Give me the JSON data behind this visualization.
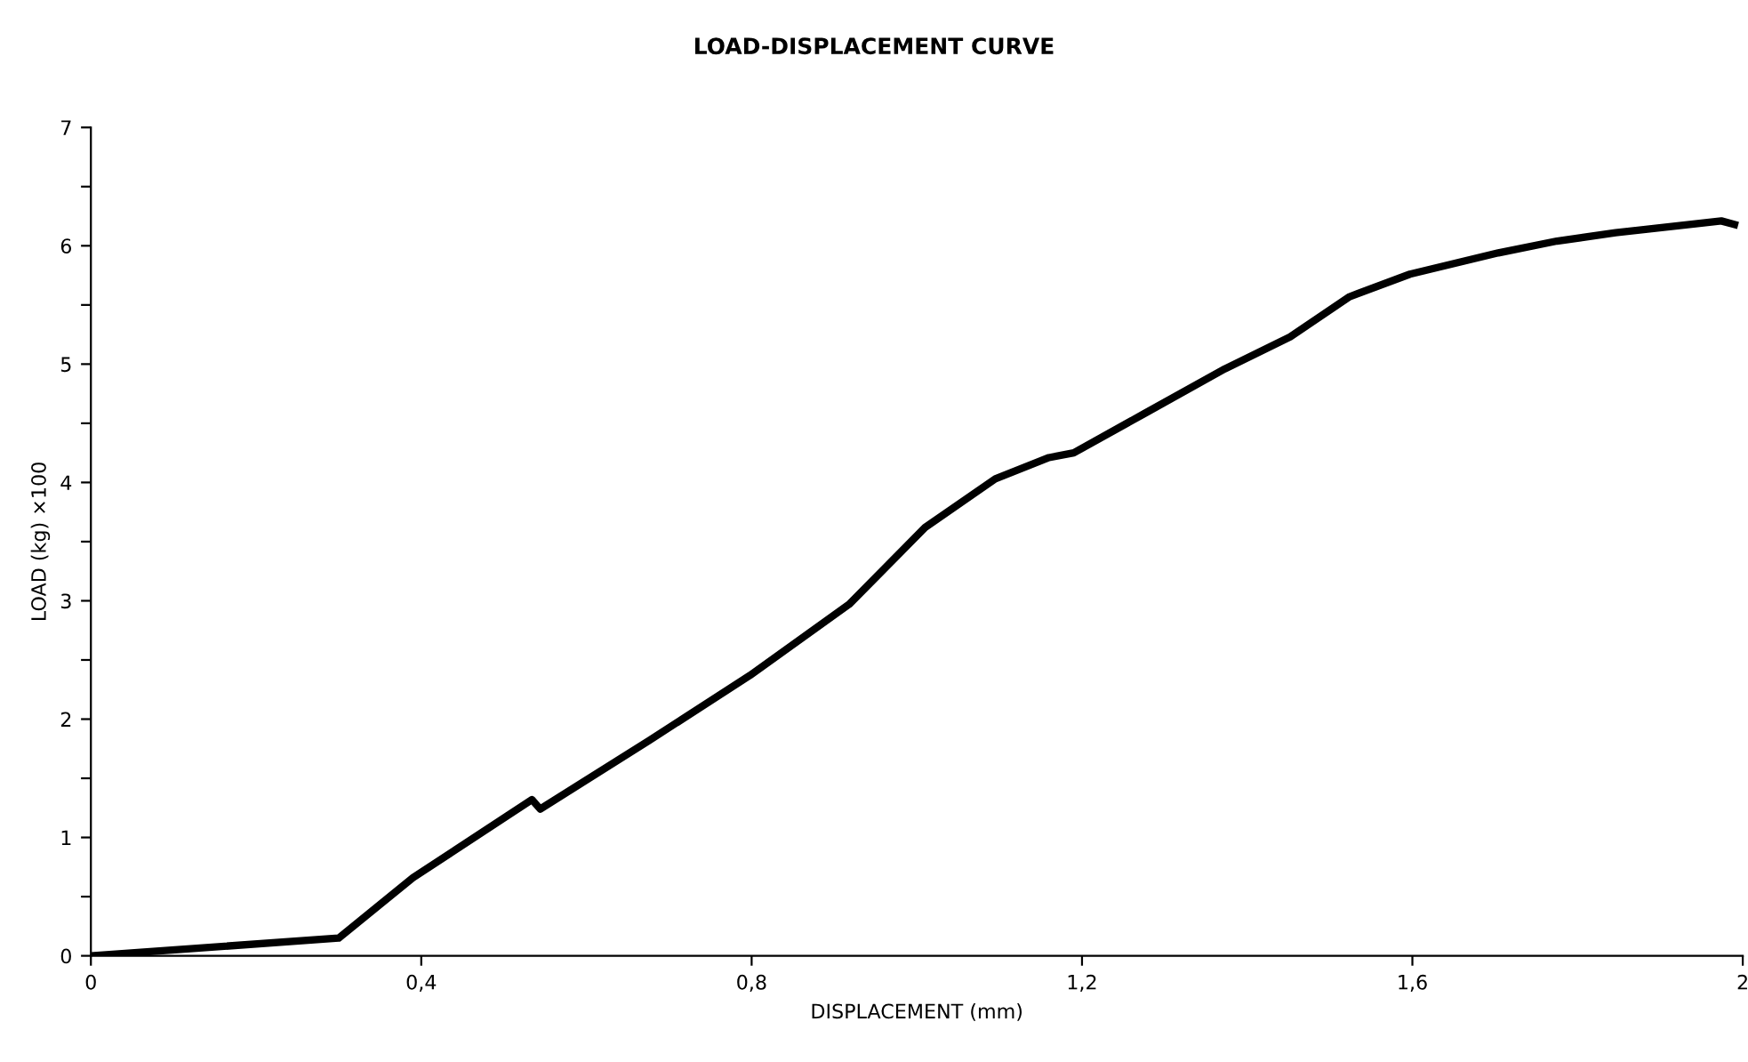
{
  "chart_data": {
    "type": "line",
    "title": "LOAD-DISPLACEMENT CURVE",
    "xlabel": "DISPLACEMENT (mm)",
    "ylabel": "LOAD (kg) ×100",
    "series": [
      {
        "color": "#000000",
        "x": [
          0,
          0.3,
          0.39,
          0.534,
          0.544,
          0.676,
          0.798,
          0.918,
          1.01,
          1.095,
          1.16,
          1.19,
          1.275,
          1.373,
          1.452,
          1.524,
          1.597,
          1.704,
          1.775,
          1.846,
          1.974,
          1.99
        ],
        "values": [
          0,
          0.15,
          0.66,
          1.32,
          1.24,
          1.82,
          2.37,
          2.97,
          3.62,
          4.03,
          4.21,
          4.25,
          4.58,
          4.96,
          5.23,
          5.57,
          5.76,
          5.94,
          6.04,
          6.11,
          6.21,
          6.18
        ]
      }
    ],
    "xlim": [
      0,
      2
    ],
    "ylim": [
      0,
      7
    ],
    "xticks": [
      0,
      {
        "value": 0.4,
        "label": "0,4"
      },
      {
        "value": 0.8,
        "label": "0,8"
      },
      {
        "value": 1.2,
        "label": "1,2"
      },
      {
        "value": 1.6,
        "label": "1,6"
      },
      2
    ],
    "yticks": [
      0,
      {
        "value": 0.5,
        "label": null
      },
      1,
      {
        "value": 1.5,
        "label": null
      },
      2,
      {
        "value": 2.5,
        "label": null
      },
      3,
      {
        "value": 3.5,
        "label": null
      },
      4,
      {
        "value": 4.5,
        "label": null
      },
      5,
      {
        "value": 5.5,
        "label": null
      },
      6,
      {
        "value": 6.5,
        "label": null
      },
      7
    ],
    "grid": false,
    "legend": false,
    "marker": "none",
    "line_style": "solid"
  }
}
